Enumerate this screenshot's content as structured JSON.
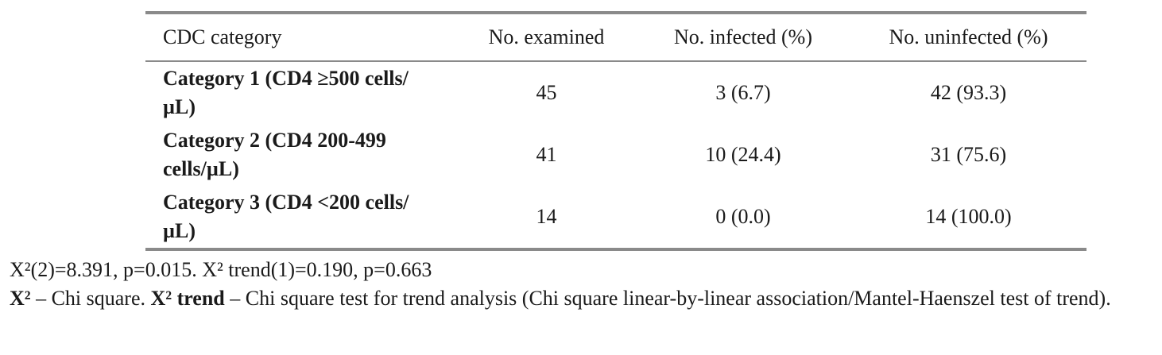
{
  "table": {
    "header": [
      "CDC category",
      "No. examined",
      "No. infected (%)",
      "No. uninfected (%)"
    ],
    "rows": [
      [
        "Category 1 (CD4 ≥500 cells/µL)",
        "45",
        "3 (6.7)",
        "42 (93.3)"
      ],
      [
        "Category 2 (CD4 200-499 cells/µL)",
        "41",
        "10 (24.4)",
        "31 (75.6)"
      ],
      [
        "Category 3 (CD4 <200 cells/µL)",
        "14",
        "0 (0.0)",
        "14 (100.0)"
      ]
    ]
  },
  "notes": [
    [
      {
        "text": "X²(2)=8.391, p=0.015. X² trend(1)=0.190, p=0.663",
        "bold": false
      }
    ],
    [
      {
        "text": "X²",
        "bold": true
      },
      {
        "text": " – Chi square. ",
        "bold": false
      },
      {
        "text": "X² trend",
        "bold": true
      },
      {
        "text": " – Chi square test for trend analysis (Chi square linear-by-linear association/Mantel-Haenszel test of trend).",
        "bold": false
      }
    ]
  ]
}
